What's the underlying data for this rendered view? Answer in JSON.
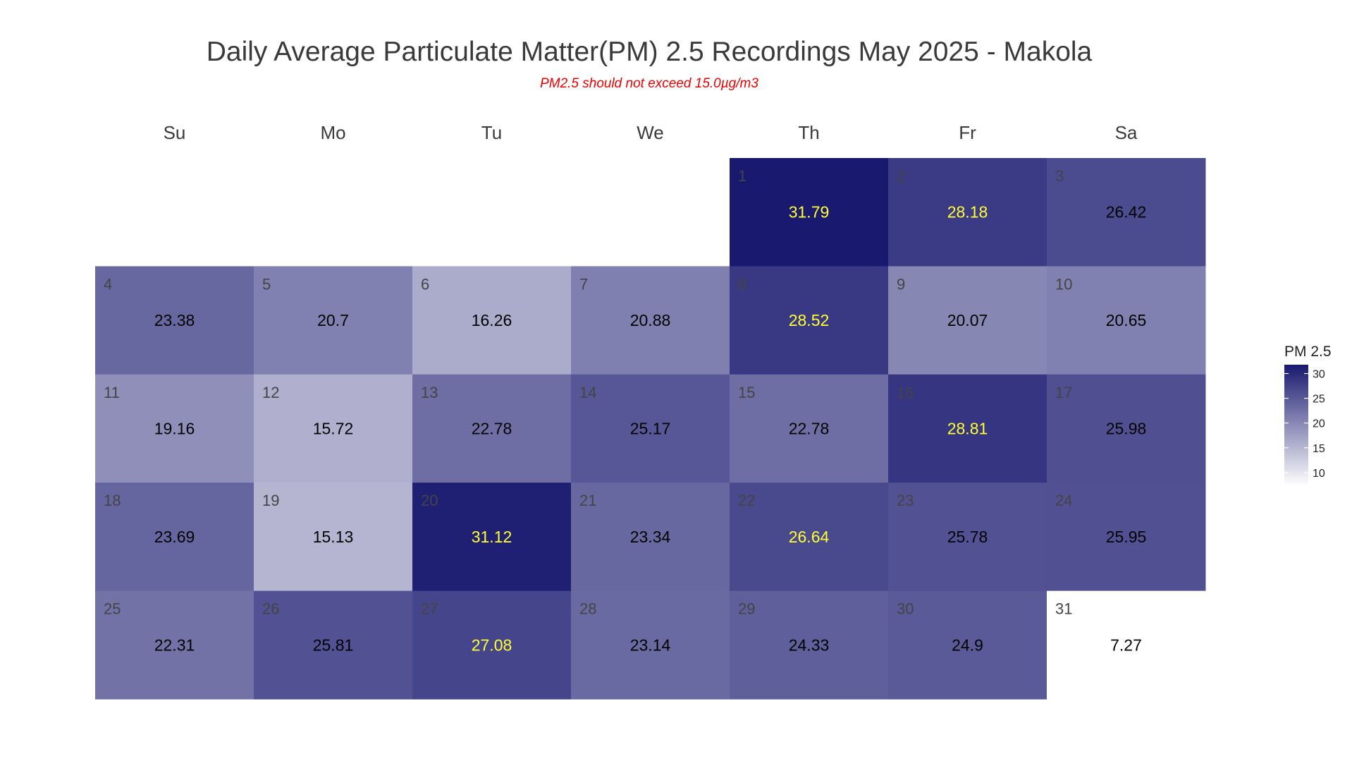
{
  "chart_data": {
    "type": "heatmap",
    "title": "Daily Average Particulate Matter(PM) 2.5 Recordings May 2025 -  Makola",
    "subtitle": "PM2.5 should not exceed 15.0µg/m3",
    "weekdays": [
      "Su",
      "Mo",
      "Tu",
      "We",
      "Th",
      "Fr",
      "Sa"
    ],
    "month": "May 2025",
    "first_weekday_index": 4,
    "days": [
      {
        "day": 1,
        "value": 31.79
      },
      {
        "day": 2,
        "value": 28.18
      },
      {
        "day": 3,
        "value": 26.42
      },
      {
        "day": 4,
        "value": 23.38
      },
      {
        "day": 5,
        "value": 20.7
      },
      {
        "day": 6,
        "value": 16.26
      },
      {
        "day": 7,
        "value": 20.88
      },
      {
        "day": 8,
        "value": 28.52
      },
      {
        "day": 9,
        "value": 20.07
      },
      {
        "day": 10,
        "value": 20.65
      },
      {
        "day": 11,
        "value": 19.16
      },
      {
        "day": 12,
        "value": 15.72
      },
      {
        "day": 13,
        "value": 22.78
      },
      {
        "day": 14,
        "value": 25.17
      },
      {
        "day": 15,
        "value": 22.78
      },
      {
        "day": 16,
        "value": 28.81
      },
      {
        "day": 17,
        "value": 25.98
      },
      {
        "day": 18,
        "value": 23.69
      },
      {
        "day": 19,
        "value": 15.13
      },
      {
        "day": 20,
        "value": 31.12
      },
      {
        "day": 21,
        "value": 23.34
      },
      {
        "day": 22,
        "value": 26.64
      },
      {
        "day": 23,
        "value": 25.78
      },
      {
        "day": 24,
        "value": 25.95
      },
      {
        "day": 25,
        "value": 22.31
      },
      {
        "day": 26,
        "value": 25.81
      },
      {
        "day": 27,
        "value": 27.08
      },
      {
        "day": 28,
        "value": 23.14
      },
      {
        "day": 29,
        "value": 24.33
      },
      {
        "day": 30,
        "value": 24.9
      },
      {
        "day": 31,
        "value": 7.27
      }
    ],
    "highlight_values": [
      31.79,
      28.18,
      28.52,
      28.81,
      31.12,
      26.64,
      27.08
    ],
    "legend": {
      "title": "PM 2.5",
      "ticks": [
        30,
        25,
        20,
        15,
        10
      ],
      "range": [
        7.27,
        31.79
      ],
      "placement": "right"
    },
    "colors": {
      "low": "#ffffff",
      "high": "#191970",
      "title": "#3a3a3a",
      "subtitle": "#ee0000",
      "value_text": "#000000",
      "highlight_text": "#ffff33",
      "day_number": "#444444"
    }
  }
}
